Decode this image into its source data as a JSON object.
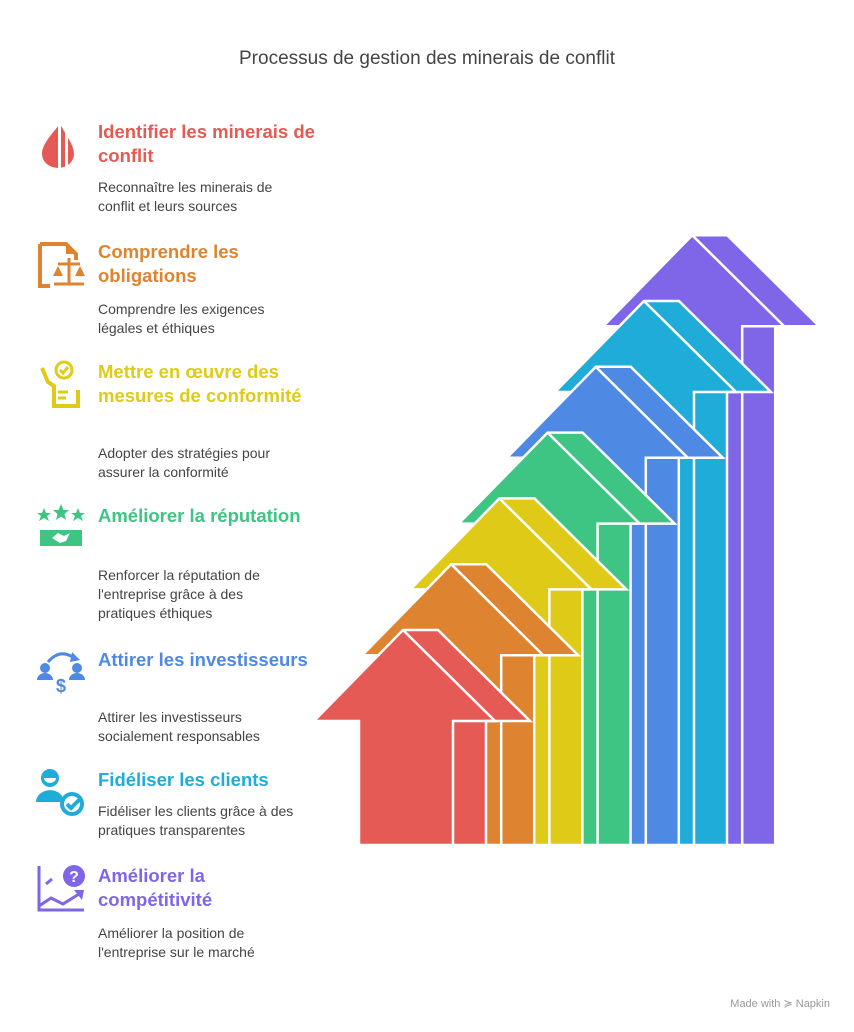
{
  "title": "Processus de gestion des minerais de conflit",
  "steps": [
    {
      "title": "Identifier les minerais de conflit",
      "description": "Reconnaître les minerais de conflit et leurs sources",
      "color": "#E55A54",
      "icon": "blood-drop-icon"
    },
    {
      "title": "Comprendre les obligations",
      "description": "Comprendre les exigences légales et éthiques",
      "color": "#DE8431",
      "icon": "legal-document-scale-icon"
    },
    {
      "title": "Mettre en œuvre des mesures de conformité",
      "description": "Adopter des stratégies pour assurer la conformité",
      "color": "#DFCB17",
      "icon": "checklist-approval-icon"
    },
    {
      "title": "Améliorer la réputation",
      "description": "Renforcer la réputation de l'entreprise grâce à des pratiques éthiques",
      "color": "#3EC483",
      "icon": "stars-handshake-icon"
    },
    {
      "title": "Attirer les investisseurs",
      "description": "Attirer les investisseurs socialement responsables",
      "color": "#4E89E4",
      "icon": "investors-exchange-icon"
    },
    {
      "title": "Fidéliser les clients",
      "description": "Fidéliser les clients grâce à des pratiques transparentes",
      "color": "#20ACD8",
      "icon": "user-check-icon"
    },
    {
      "title": "Améliorer la compétitivité",
      "description": "Améliorer la position de l'entreprise sur le marché",
      "color": "#7F66E8",
      "icon": "growth-chart-question-icon"
    }
  ],
  "footer": "Made with ≽ Napkin"
}
